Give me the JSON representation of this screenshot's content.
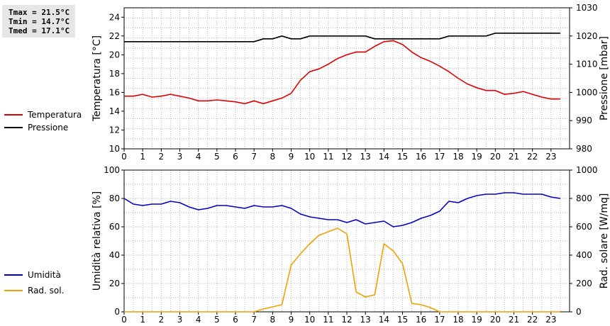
{
  "stats": {
    "tmax": "Tmax = 21.5°C",
    "tmin": "Tmin = 14.7°C",
    "tmed": "Tmed = 17.1°C"
  },
  "legend": {
    "top": [
      {
        "label": "Temperatura",
        "color": "#e00000"
      },
      {
        "label": "Pressione",
        "color": "#000000"
      }
    ],
    "bottom": [
      {
        "label": "Umidità",
        "color": "#0000c8"
      },
      {
        "label": "Rad. sol.",
        "color": "#f0a000"
      }
    ]
  },
  "chart_data": [
    {
      "type": "line",
      "x": [
        0,
        0.5,
        1,
        1.5,
        2,
        2.5,
        3,
        3.5,
        4,
        4.5,
        5,
        5.5,
        6,
        6.5,
        7,
        7.5,
        8,
        8.5,
        9,
        9.5,
        10,
        10.5,
        11,
        11.5,
        12,
        12.5,
        13,
        13.5,
        14,
        14.5,
        15,
        15.5,
        16,
        16.5,
        17,
        17.5,
        18,
        18.5,
        19,
        19.5,
        20,
        20.5,
        21,
        21.5,
        22,
        22.5,
        23,
        23.5
      ],
      "xlim": [
        0,
        24
      ],
      "xticks": [
        "0",
        "1",
        "2",
        "3",
        "4",
        "5",
        "6",
        "7",
        "8",
        "9",
        "10",
        "11",
        "12",
        "13",
        "14",
        "15",
        "16",
        "17",
        "18",
        "19",
        "20",
        "21",
        "22",
        "23"
      ],
      "ylabel": "Temperatura [°C]",
      "ylim": [
        10,
        25
      ],
      "yticks": [
        "10",
        "12",
        "14",
        "16",
        "18",
        "20",
        "22",
        "24"
      ],
      "y2label": "Pressione [mbar]",
      "y2lim": [
        980,
        1030
      ],
      "y2ticks": [
        "980",
        "990",
        "1000",
        "1010",
        "1020",
        "1030"
      ],
      "grid": true,
      "series": [
        {
          "name": "Temperatura",
          "axis": "left",
          "color": "#e00000",
          "values": [
            15.6,
            15.6,
            15.8,
            15.5,
            15.6,
            15.8,
            15.6,
            15.4,
            15.1,
            15.1,
            15.2,
            15.1,
            15.0,
            14.8,
            15.1,
            14.8,
            15.1,
            15.4,
            15.9,
            17.3,
            18.2,
            18.5,
            19.0,
            19.6,
            20.0,
            20.3,
            20.3,
            20.9,
            21.4,
            21.5,
            21.1,
            20.3,
            19.7,
            19.3,
            18.8,
            18.2,
            17.5,
            16.9,
            16.5,
            16.2,
            16.2,
            15.8,
            15.9,
            16.1,
            15.8,
            15.5,
            15.3,
            15.3
          ]
        },
        {
          "name": "Pressione",
          "axis": "right",
          "color": "#000000",
          "values": [
            1018,
            1018,
            1018,
            1018,
            1018,
            1018,
            1018,
            1018,
            1018,
            1018,
            1018,
            1018,
            1018,
            1018,
            1018,
            1019,
            1019,
            1020,
            1019,
            1019,
            1020,
            1020,
            1020,
            1020,
            1020,
            1020,
            1020,
            1019,
            1019,
            1019,
            1019,
            1019,
            1019,
            1019,
            1019,
            1020,
            1020,
            1020,
            1020,
            1020,
            1021,
            1021,
            1021,
            1021,
            1021,
            1021,
            1021,
            1021
          ]
        }
      ]
    },
    {
      "type": "line",
      "x": [
        0,
        0.5,
        1,
        1.5,
        2,
        2.5,
        3,
        3.5,
        4,
        4.5,
        5,
        5.5,
        6,
        6.5,
        7,
        7.5,
        8,
        8.5,
        9,
        9.5,
        10,
        10.5,
        11,
        11.5,
        12,
        12.5,
        13,
        13.5,
        14,
        14.5,
        15,
        15.5,
        16,
        16.5,
        17,
        17.5,
        18,
        18.5,
        19,
        19.5,
        20,
        20.5,
        21,
        21.5,
        22,
        22.5,
        23,
        23.5
      ],
      "xlim": [
        0,
        24
      ],
      "xticks": [
        "0",
        "1",
        "2",
        "3",
        "4",
        "5",
        "6",
        "7",
        "8",
        "9",
        "10",
        "11",
        "12",
        "13",
        "14",
        "15",
        "16",
        "17",
        "18",
        "19",
        "20",
        "21",
        "22",
        "23"
      ],
      "ylabel": "Umidità relativa [%]",
      "ylim": [
        0,
        100
      ],
      "yticks": [
        "0",
        "20",
        "40",
        "60",
        "80",
        "100"
      ],
      "y2label": "Rad. solare [W/mq]",
      "y2lim": [
        0,
        1000
      ],
      "y2ticks": [
        "0",
        "200",
        "400",
        "600",
        "800",
        "1000"
      ],
      "grid": true,
      "series": [
        {
          "name": "Umidità",
          "axis": "left",
          "color": "#0000c8",
          "values": [
            80,
            76,
            75,
            76,
            76,
            78,
            77,
            74,
            72,
            73,
            75,
            75,
            74,
            73,
            75,
            74,
            74,
            75,
            73,
            69,
            67,
            66,
            65,
            65,
            63,
            65,
            62,
            63,
            64,
            60,
            61,
            63,
            66,
            68,
            71,
            78,
            77,
            80,
            82,
            83,
            83,
            84,
            84,
            83,
            83,
            83,
            81,
            80
          ]
        },
        {
          "name": "Rad. sol.",
          "axis": "right",
          "color": "#f0a000",
          "values": [
            0,
            0,
            0,
            0,
            0,
            0,
            0,
            0,
            0,
            0,
            0,
            0,
            0,
            0,
            0,
            20,
            35,
            50,
            330,
            410,
            480,
            540,
            565,
            590,
            550,
            140,
            105,
            120,
            480,
            430,
            340,
            60,
            50,
            30,
            0,
            0,
            0,
            0,
            0,
            0,
            0,
            0,
            0,
            0,
            0,
            0,
            0,
            0
          ]
        }
      ]
    }
  ]
}
